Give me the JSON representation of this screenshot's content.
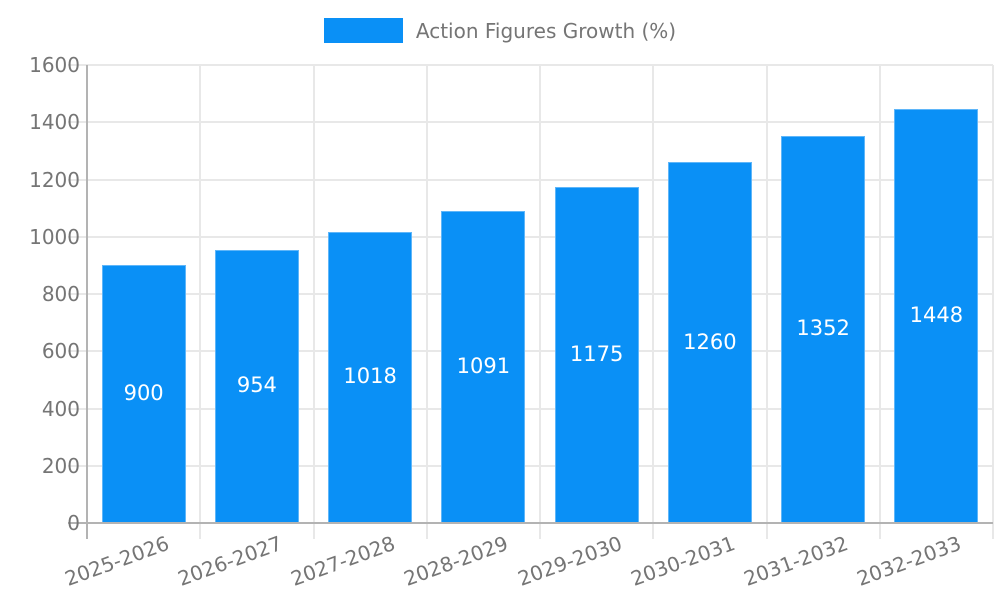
{
  "chart_data": {
    "type": "bar",
    "title": "",
    "legend": {
      "label": "Action Figures Growth (%)",
      "position": "top-center"
    },
    "categories": [
      "2025-2026",
      "2026-2027",
      "2027-2028",
      "2028-2029",
      "2029-2030",
      "2030-2031",
      "2031-2032",
      "2032-2033"
    ],
    "series": [
      {
        "name": "Action Figures Growth (%)",
        "values": [
          900,
          954,
          1018,
          1091,
          1175,
          1260,
          1352,
          1448
        ],
        "color": "#0a90f6"
      }
    ],
    "xlabel": "",
    "ylabel": "",
    "ylim": [
      0,
      1600
    ],
    "yticks": [
      0,
      200,
      400,
      600,
      800,
      1000,
      1200,
      1400,
      1600
    ],
    "grid": true,
    "value_labels": {
      "visible": true,
      "position": "inside-center",
      "color": "#ffffff"
    },
    "colors": {
      "bar": "#0a90f6",
      "axis_text": "#757575",
      "gridline": "#e8e8e8",
      "axis_line": "#b3b3b3",
      "background": "#ffffff"
    }
  }
}
